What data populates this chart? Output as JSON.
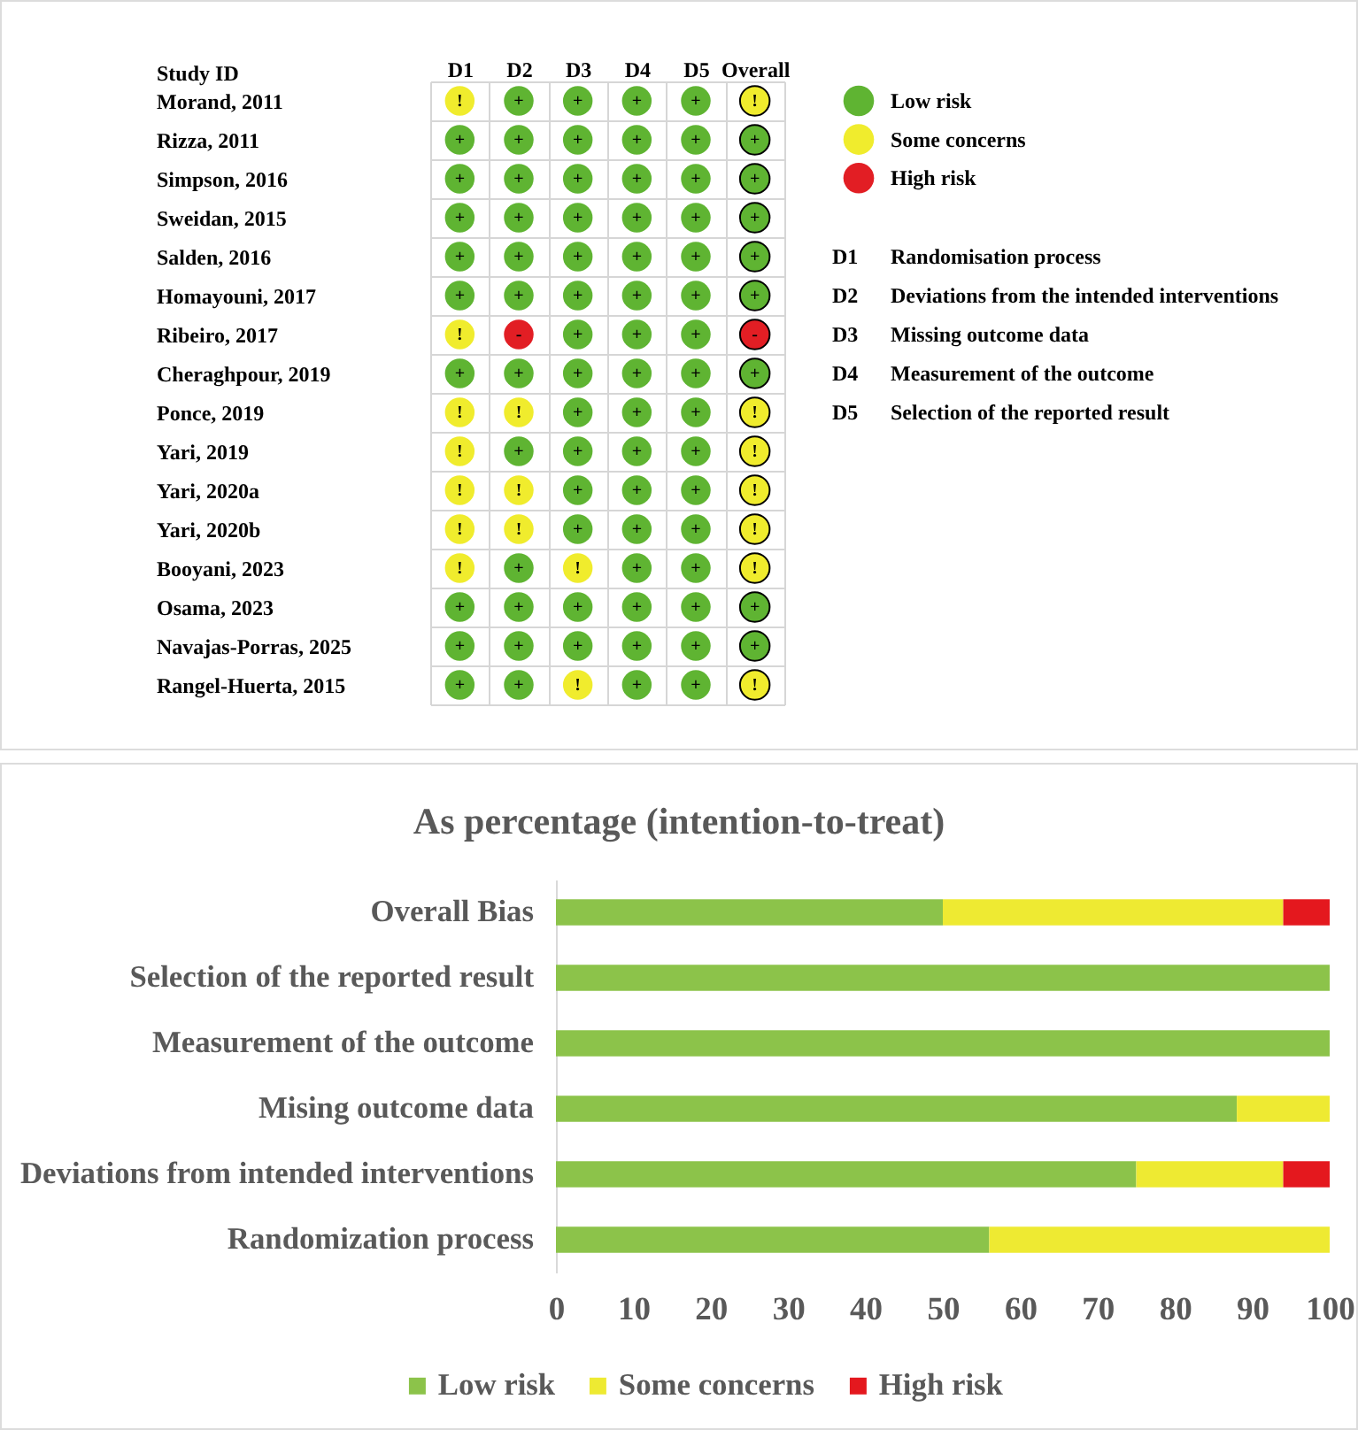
{
  "chart_data": [
    {
      "type": "other",
      "ylabel": "Study ID",
      "categories": [
        "D1",
        "D2",
        "D3",
        "D4",
        "D5",
        "Overall"
      ],
      "y_categories": [
        "Morand, 2011",
        "Rizza, 2011",
        "Simpson, 2016",
        "Sweidan, 2015",
        "Salden, 2016",
        "Homayouni, 2017",
        "Ribeiro, 2017",
        "Cheraghpour, 2019",
        "Ponce, 2019",
        "Yari, 2019",
        "Yari, 2020a",
        "Yari, 2020b",
        "Booyani, 2023",
        "Osama, 2023",
        "Navajas-Porras, 2025",
        "Rangel-Huerta, 2015"
      ],
      "cell_labels": [
        [
          "!",
          "+",
          "+",
          "+",
          "+",
          "!"
        ],
        [
          "+",
          "+",
          "+",
          "+",
          "+",
          "+"
        ],
        [
          "+",
          "+",
          "+",
          "+",
          "+",
          "+"
        ],
        [
          "+",
          "+",
          "+",
          "+",
          "+",
          "+"
        ],
        [
          "+",
          "+",
          "+",
          "+",
          "+",
          "+"
        ],
        [
          "+",
          "+",
          "+",
          "+",
          "+",
          "+"
        ],
        [
          "!",
          "-",
          "+",
          "+",
          "+",
          "-"
        ],
        [
          "+",
          "+",
          "+",
          "+",
          "+",
          "+"
        ],
        [
          "!",
          "!",
          "+",
          "+",
          "+",
          "!"
        ],
        [
          "!",
          "+",
          "+",
          "+",
          "+",
          "!"
        ],
        [
          "!",
          "!",
          "+",
          "+",
          "+",
          "!"
        ],
        [
          "!",
          "!",
          "+",
          "+",
          "+",
          "!"
        ],
        [
          "!",
          "+",
          "!",
          "+",
          "+",
          "!"
        ],
        [
          "+",
          "+",
          "+",
          "+",
          "+",
          "+"
        ],
        [
          "+",
          "+",
          "+",
          "+",
          "+",
          "+"
        ],
        [
          "+",
          "+",
          "!",
          "+",
          "+",
          "!"
        ]
      ],
      "colors": [
        [
          "#f0ec2d",
          "#5fb432",
          "#5fb432",
          "#5fb432",
          "#5fb432",
          "#f0ec2d"
        ],
        [
          "#5fb432",
          "#5fb432",
          "#5fb432",
          "#5fb432",
          "#5fb432",
          "#5fb432"
        ],
        [
          "#5fb432",
          "#5fb432",
          "#5fb432",
          "#5fb432",
          "#5fb432",
          "#5fb432"
        ],
        [
          "#5fb432",
          "#5fb432",
          "#5fb432",
          "#5fb432",
          "#5fb432",
          "#5fb432"
        ],
        [
          "#5fb432",
          "#5fb432",
          "#5fb432",
          "#5fb432",
          "#5fb432",
          "#5fb432"
        ],
        [
          "#5fb432",
          "#5fb432",
          "#5fb432",
          "#5fb432",
          "#5fb432",
          "#5fb432"
        ],
        [
          "#f0ec2d",
          "#e21e24",
          "#5fb432",
          "#5fb432",
          "#5fb432",
          "#e21e24"
        ],
        [
          "#5fb432",
          "#5fb432",
          "#5fb432",
          "#5fb432",
          "#5fb432",
          "#5fb432"
        ],
        [
          "#f0ec2d",
          "#f0ec2d",
          "#5fb432",
          "#5fb432",
          "#5fb432",
          "#f0ec2d"
        ],
        [
          "#f0ec2d",
          "#5fb432",
          "#5fb432",
          "#5fb432",
          "#5fb432",
          "#f0ec2d"
        ],
        [
          "#f0ec2d",
          "#f0ec2d",
          "#5fb432",
          "#5fb432",
          "#5fb432",
          "#f0ec2d"
        ],
        [
          "#f0ec2d",
          "#f0ec2d",
          "#5fb432",
          "#5fb432",
          "#5fb432",
          "#f0ec2d"
        ],
        [
          "#f0ec2d",
          "#5fb432",
          "#f0ec2d",
          "#5fb432",
          "#5fb432",
          "#f0ec2d"
        ],
        [
          "#5fb432",
          "#5fb432",
          "#5fb432",
          "#5fb432",
          "#5fb432",
          "#5fb432"
        ],
        [
          "#5fb432",
          "#5fb432",
          "#5fb432",
          "#5fb432",
          "#5fb432",
          "#5fb432"
        ],
        [
          "#5fb432",
          "#5fb432",
          "#f0ec2d",
          "#5fb432",
          "#5fb432",
          "#f0ec2d"
        ]
      ],
      "series": [
        {
          "name": "Low risk",
          "color": "#5fb432",
          "values": [
            null,
            null,
            null,
            null,
            null,
            null
          ]
        },
        {
          "name": "Some concerns",
          "color": "#f0ec2d",
          "values": [
            null,
            null,
            null,
            null,
            null,
            null
          ]
        },
        {
          "name": "High risk",
          "color": "#e21e24",
          "values": [
            null,
            null,
            null,
            null,
            null,
            null
          ]
        }
      ],
      "legend": "top right",
      "annotations": [
        "D1 Randomisation process",
        "D2 Deviations from the intended interventions",
        "D3 Missing outcome data",
        "D4 Measurement of the outcome",
        "D5 Selection of the reported result"
      ]
    },
    {
      "type": "bar",
      "orientation": "horizontal",
      "stacked": true,
      "title": "As percentage (intention-to-treat)",
      "categories": [
        "Overall Bias",
        "Selection of the reported result",
        "Measurement of the outcome",
        "Mising outcome data",
        "Deviations from intended interventions",
        "Randomization process"
      ],
      "series": [
        {
          "name": "Low risk",
          "color": "#8cc34a",
          "values": [
            50,
            100,
            100,
            88,
            75,
            56
          ]
        },
        {
          "name": "Some concerns",
          "color": "#eeea32",
          "values": [
            44,
            null,
            null,
            12,
            19,
            44
          ]
        },
        {
          "name": "High risk",
          "color": "#e4181e",
          "values": [
            6,
            null,
            null,
            null,
            6,
            null
          ]
        }
      ],
      "xlim": [
        0,
        100
      ],
      "xticks": [
        0,
        10,
        20,
        30,
        40,
        50,
        60,
        70,
        80,
        90,
        100
      ],
      "legend": "bottom"
    }
  ]
}
